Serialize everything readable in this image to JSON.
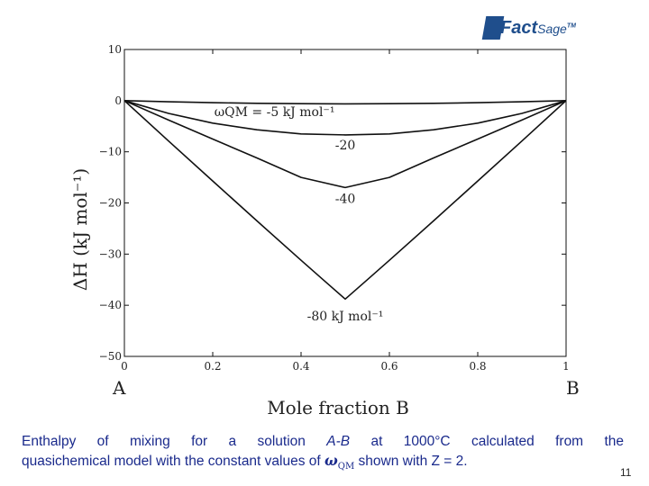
{
  "logo": {
    "brand_main": "Fact",
    "brand_sub": "Sage",
    "trademark": "TM"
  },
  "chart_data": {
    "type": "line",
    "title": "",
    "xlabel": "Mole fraction B",
    "ylabel": "ΔH (kJ mol⁻¹)",
    "xlim": [
      0,
      1
    ],
    "ylim": [
      -50,
      10
    ],
    "x_ticks": [
      "0",
      "0.2",
      "0.4",
      "0.6",
      "0.8",
      "1"
    ],
    "y_ticks": [
      "10",
      "0",
      "−10",
      "−20",
      "−30",
      "−40",
      "−50"
    ],
    "x_end_labels": {
      "left": "A",
      "right": "B"
    },
    "grid": false,
    "series": [
      {
        "label": "ωQM = -5 kJ mol⁻¹",
        "omega": -5,
        "x": [
          0,
          0.1,
          0.2,
          0.3,
          0.4,
          0.5,
          0.6,
          0.7,
          0.8,
          0.9,
          1
        ],
        "y": [
          0,
          -0.22,
          -0.4,
          -0.52,
          -0.6,
          -0.62,
          -0.6,
          -0.52,
          -0.4,
          -0.22,
          0
        ]
      },
      {
        "label": "-20",
        "omega": -20,
        "x": [
          0,
          0.1,
          0.2,
          0.3,
          0.4,
          0.5,
          0.6,
          0.7,
          0.8,
          0.9,
          1
        ],
        "y": [
          0,
          -2.5,
          -4.4,
          -5.7,
          -6.5,
          -6.7,
          -6.5,
          -5.7,
          -4.4,
          -2.5,
          0
        ]
      },
      {
        "label": "-40",
        "omega": -40,
        "x": [
          0,
          0.1,
          0.2,
          0.3,
          0.4,
          0.5,
          0.6,
          0.7,
          0.8,
          0.9,
          1
        ],
        "y": [
          0,
          -3.8,
          -7.5,
          -11.2,
          -15.0,
          -17.0,
          -15.0,
          -11.2,
          -7.5,
          -3.8,
          0
        ]
      },
      {
        "label": "-80 kJ mol⁻¹",
        "omega": -80,
        "x": [
          0,
          0.1,
          0.2,
          0.3,
          0.4,
          0.45,
          0.5,
          0.55,
          0.6,
          0.7,
          0.8,
          0.9,
          1
        ],
        "y": [
          0,
          -7.9,
          -15.7,
          -23.5,
          -31.2,
          -35.0,
          -38.8,
          -35.0,
          -31.2,
          -23.5,
          -15.7,
          -7.9,
          0
        ]
      }
    ],
    "annotations": [
      {
        "text": "ωQM = -5 kJ mol⁻¹",
        "x": 0.34,
        "y": -3
      },
      {
        "text": "-20",
        "x": 0.5,
        "y": -9.5
      },
      {
        "text": "-40",
        "x": 0.5,
        "y": -20
      },
      {
        "text": "-80 kJ mol⁻¹",
        "x": 0.5,
        "y": -43
      }
    ]
  },
  "caption": {
    "part1": "Enthalpy of mixing for a solution ",
    "system": "A-B",
    "part2": " at 1000°C calculated from the",
    "part3": "quasichemical model with the constant values of ",
    "omega": "ω",
    "omega_sub": "QM",
    "part4": " shown with Z = 2."
  },
  "page_number": "11",
  "colors": {
    "caption_text": "#1a2a8c",
    "logo": "#1f4e8c",
    "curves": "#111111"
  }
}
